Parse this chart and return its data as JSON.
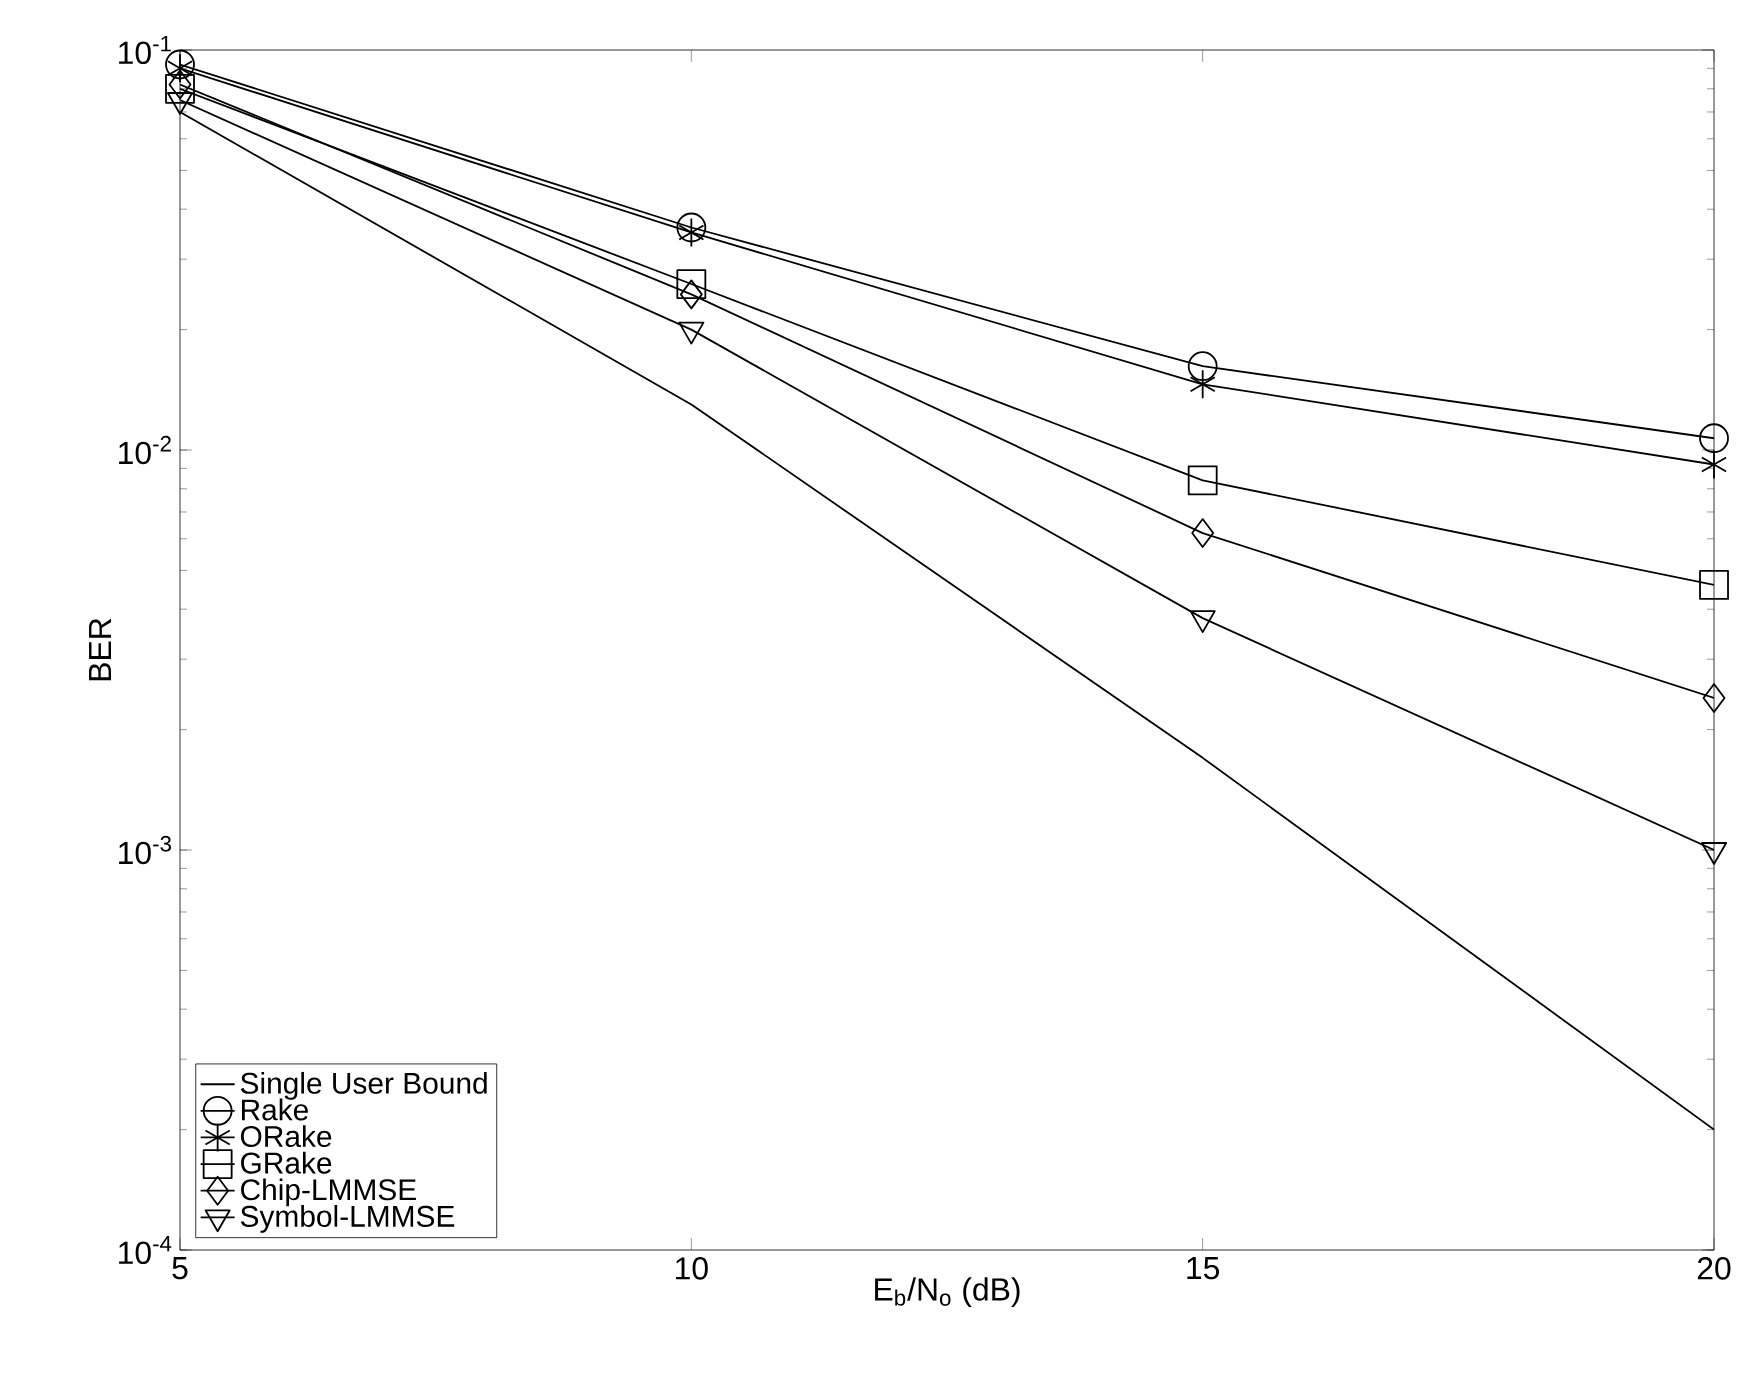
{
  "chart_data": {
    "type": "line",
    "xlabel": "E$_{b}$/N$_{o}$ (dB)",
    "ylabel": "BER",
    "x": [
      5,
      10,
      15,
      20
    ],
    "series": [
      {
        "name": "Single User Bound",
        "color": "#000000",
        "marker": "none",
        "values": [
          0.07,
          0.013,
          0.0017,
          0.0002
        ]
      },
      {
        "name": "Rake",
        "color": "#000000",
        "marker": "circle",
        "values": [
          0.092,
          0.036,
          0.0162,
          0.0107
        ]
      },
      {
        "name": "ORake",
        "color": "#000000",
        "marker": "cross",
        "values": [
          0.09,
          0.035,
          0.0146,
          0.0092
        ]
      },
      {
        "name": "GRake",
        "color": "#000000",
        "marker": "square",
        "values": [
          0.08,
          0.026,
          0.0084,
          0.0046
        ]
      },
      {
        "name": "Chip-LMMSE",
        "color": "#000000",
        "marker": "diamond",
        "values": [
          0.082,
          0.0245,
          0.0062,
          0.0024
        ]
      },
      {
        "name": "Symbol-LMMSE",
        "color": "#000000",
        "marker": "triangle",
        "values": [
          0.075,
          0.02,
          0.0038,
          0.001
        ]
      }
    ],
    "xlim": [
      5,
      20
    ],
    "xticks": [
      5,
      10,
      15,
      20
    ],
    "ylim": [
      0.0001,
      0.1
    ],
    "yticks": [
      {
        "value": 0.0001,
        "label": "10$^{-4}$"
      },
      {
        "value": 0.001,
        "label": "10$^{-3}$"
      },
      {
        "value": 0.01,
        "label": "10$^{-2}$"
      },
      {
        "value": 0.1,
        "label": "10$^{-1}$"
      }
    ],
    "log": "y",
    "grid": false,
    "legend": "bottom left",
    "line_style": "solid"
  }
}
